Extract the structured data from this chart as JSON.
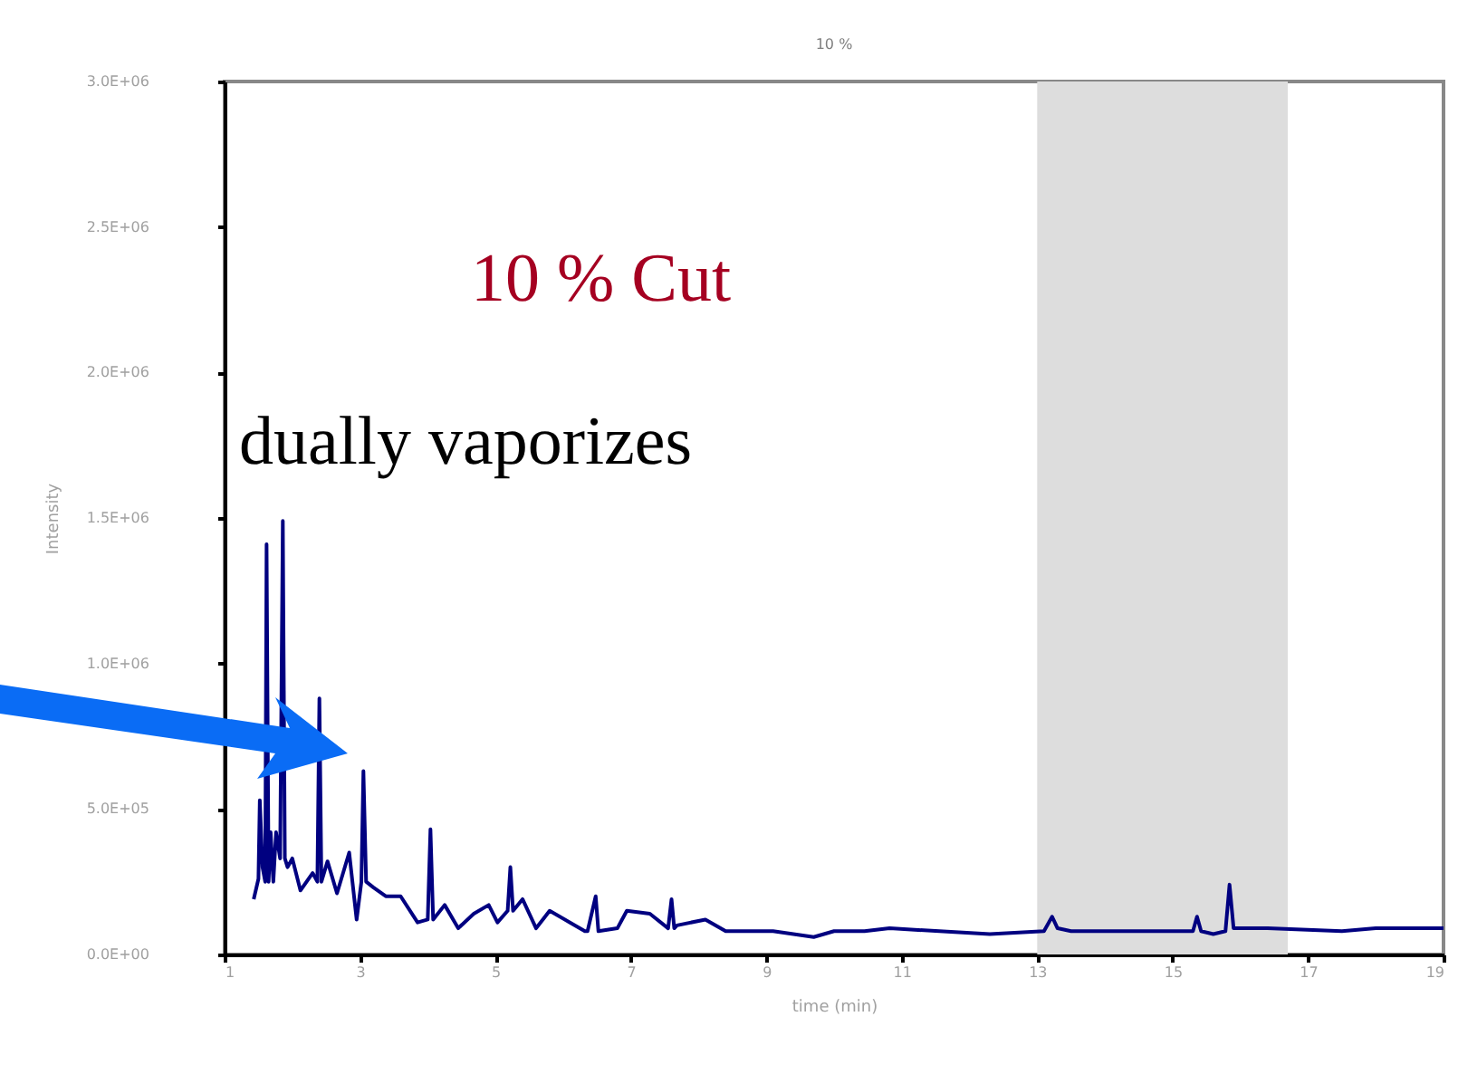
{
  "chart_data": {
    "type": "line",
    "title": "10 %",
    "xlabel": "time (min)",
    "ylabel": "Intensity",
    "annotations": [
      "10 % Cut",
      "dually vaporizes"
    ],
    "xlim": [
      1,
      19
    ],
    "xticks": [
      1,
      3,
      5,
      7,
      9,
      11,
      13,
      15,
      17,
      19
    ],
    "ylim": [
      0,
      3000000
    ],
    "yticks": [
      {
        "value": 0,
        "label": "0.0E+00"
      },
      {
        "value": 500000,
        "label": "5.0E+05"
      },
      {
        "value": 1000000,
        "label": "1.0E+06"
      },
      {
        "value": 1500000,
        "label": "1.5E+06"
      },
      {
        "value": 2000000,
        "label": "2.0E+06"
      },
      {
        "value": 2500000,
        "label": "2.5E+06"
      },
      {
        "value": 3000000,
        "label": "3.0E+06"
      }
    ],
    "grid": false,
    "legend": false,
    "bands": [
      {
        "axis": "x",
        "from": 13,
        "to": 16.7,
        "color": "#dddddd"
      }
    ],
    "series": [
      {
        "color": "#000080",
        "x": [
          1.43,
          1.5,
          1.52,
          1.56,
          1.6,
          1.62,
          1.65,
          1.68,
          1.72,
          1.76,
          1.82,
          1.86,
          1.89,
          1.93,
          2.0,
          2.12,
          2.3,
          2.37,
          2.4,
          2.43,
          2.52,
          2.66,
          2.84,
          2.95,
          3.02,
          3.05,
          3.09,
          3.2,
          3.38,
          3.6,
          3.85,
          4.0,
          4.04,
          4.08,
          4.25,
          4.45,
          4.68,
          4.9,
          5.03,
          5.18,
          5.22,
          5.26,
          5.4,
          5.6,
          5.8,
          6.1,
          6.32,
          6.36,
          6.48,
          6.52,
          6.8,
          6.94,
          7.28,
          7.55,
          7.6,
          7.64,
          7.68,
          8.1,
          8.4,
          9.1,
          9.7,
          10.0,
          10.45,
          10.82,
          12.3,
          13.1,
          13.22,
          13.3,
          13.5,
          15.25,
          15.3,
          15.36,
          15.42,
          15.6,
          15.78,
          15.84,
          15.9,
          16.4,
          17.5,
          18.0,
          18.5,
          19.0
        ],
        "values": [
          190000,
          260000,
          530000,
          300000,
          250000,
          1410000,
          250000,
          420000,
          250000,
          420000,
          330000,
          1490000,
          330000,
          300000,
          330000,
          220000,
          280000,
          250000,
          880000,
          250000,
          320000,
          210000,
          350000,
          120000,
          250000,
          630000,
          250000,
          230000,
          200000,
          200000,
          110000,
          120000,
          430000,
          120000,
          170000,
          90000,
          140000,
          170000,
          110000,
          150000,
          300000,
          150000,
          190000,
          90000,
          150000,
          110000,
          80000,
          80000,
          200000,
          80000,
          90000,
          150000,
          140000,
          90000,
          190000,
          90000,
          100000,
          120000,
          80000,
          80000,
          60000,
          80000,
          80000,
          90000,
          70000,
          80000,
          130000,
          90000,
          80000,
          80000,
          80000,
          130000,
          80000,
          70000,
          80000,
          240000,
          90000,
          90000,
          80000,
          90000,
          90000,
          90000
        ]
      }
    ]
  }
}
